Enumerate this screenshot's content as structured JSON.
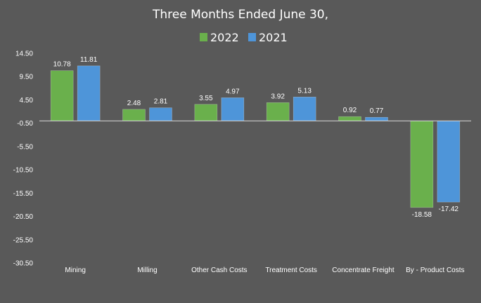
{
  "chart_data": {
    "type": "bar",
    "title": "Three Months Ended June 30,",
    "xlabel": "",
    "ylabel": "",
    "categories": [
      "Mining",
      "Milling",
      "Other Cash Costs",
      "Treatment Costs",
      "Concentrate Freight",
      "By - Product Costs"
    ],
    "series": [
      {
        "name": "2022",
        "color": "#6ab04c",
        "values": [
          10.78,
          2.48,
          3.55,
          3.92,
          0.92,
          -18.58
        ],
        "labels": [
          "10.78",
          "2.48",
          "3.55",
          "3.92",
          "0.92",
          "-18.58"
        ]
      },
      {
        "name": "2021",
        "color": "#4e95d9",
        "values": [
          11.81,
          2.81,
          4.97,
          5.13,
          0.77,
          -17.42
        ],
        "labels": [
          "11.81",
          "2.81",
          "4.97",
          "5.13",
          "0.77",
          "-17.42"
        ]
      }
    ],
    "ylim": [
      -30.5,
      14.5
    ],
    "yticks": [
      14.5,
      9.5,
      4.5,
      -0.5,
      -5.5,
      -10.5,
      -15.5,
      -20.5,
      -25.5,
      -30.5
    ],
    "ytick_labels": [
      "14.50",
      "9.50",
      "4.50",
      "-0.50",
      "-5.50",
      "-10.50",
      "-15.50",
      "-20.50",
      "-25.50",
      "-30.50"
    ],
    "zero_line": 0,
    "legend_position": "top-center",
    "grid": false,
    "background": "#595959"
  }
}
